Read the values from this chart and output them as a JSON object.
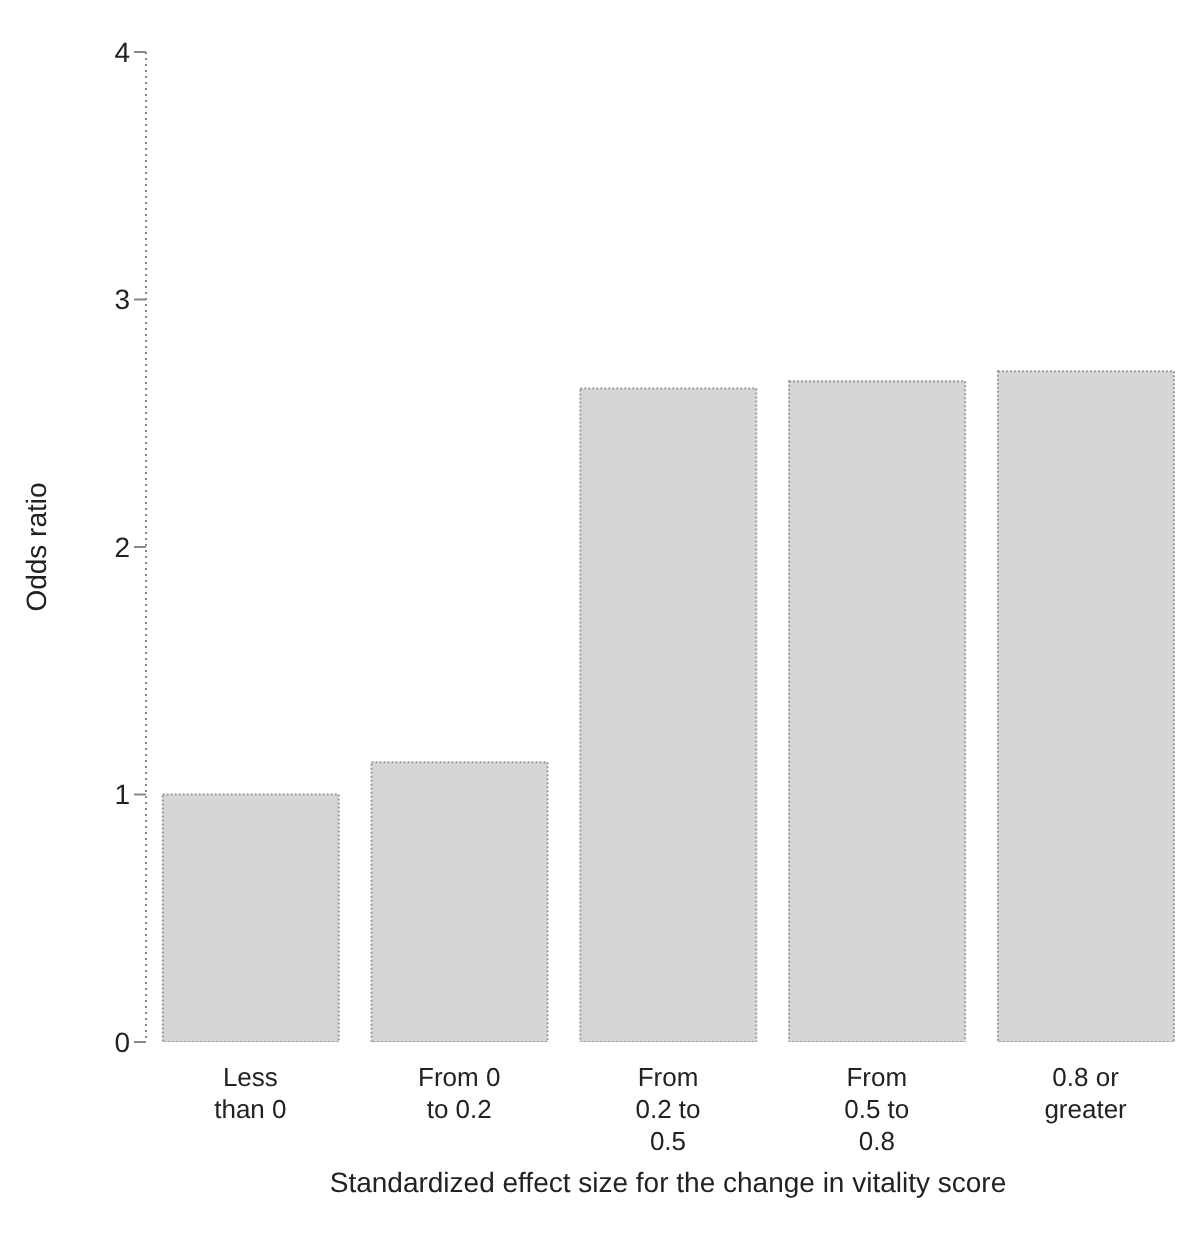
{
  "chart_data": {
    "type": "bar",
    "xlabel": "Standardized effect size for the change in vitality score",
    "ylabel": "Odds ratio",
    "categories": [
      "Less than 0",
      "From 0 to 0.2",
      "From 0.2 to 0.5",
      "From 0.5 to 0.8",
      "0.8 or greater"
    ],
    "values": [
      1.0,
      1.13,
      2.64,
      2.67,
      2.71
    ],
    "color": "#d6d6d6",
    "ylim": [
      0,
      4
    ],
    "yticks": [
      0,
      1,
      2,
      3,
      4
    ],
    "grid": false,
    "legend": false
  }
}
